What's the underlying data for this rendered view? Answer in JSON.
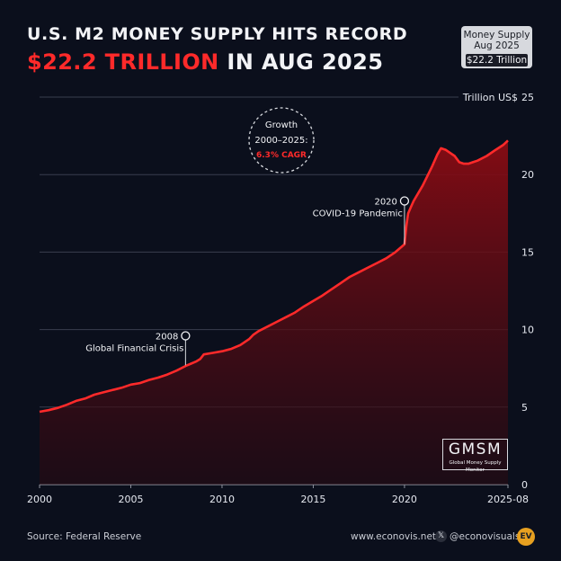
{
  "header": {
    "title_line1": "U.S. M2 MONEY SUPPLY HITS RECORD",
    "title_highlight": "$22.2 TRILLION",
    "title_rest": " IN AUG 2025"
  },
  "badge": {
    "line1": "Money Supply",
    "line2": "Aug 2025",
    "value": "$22.2 Trillion"
  },
  "growth": {
    "line1": "Growth",
    "line2": "2000–2025:",
    "line3": "6.3% CAGR"
  },
  "annotations": [
    {
      "year_label": "2008",
      "text": "Global Financial Crisis",
      "x": 2008.0,
      "y": 9.6,
      "line_to": 7.7
    },
    {
      "year_label": "2020",
      "text": "COVID-19 Pandemic",
      "x": 2020.0,
      "y": 18.3,
      "line_to": 15.5
    }
  ],
  "gmsm": {
    "title": "GMSM",
    "subtitle": "Global Money Supply Monitor"
  },
  "footer": {
    "source": "Source: Federal Reserve",
    "website": "www.econovis.net",
    "handle": "@econovisuals",
    "x_icon": "x-logo-icon",
    "logo": "EV"
  },
  "colors": {
    "background": "#0b0f1c",
    "line": "#ff2a2a",
    "area_top": "#8a0c14",
    "accent": "#ff2a2a",
    "text": "#f2f3f6"
  },
  "chart_data": {
    "type": "area",
    "title": "U.S. M2 MONEY SUPPLY HITS RECORD",
    "subtitle": "$22.2 TRILLION IN AUG 2025",
    "ylabel": "Trillion US$",
    "xlim": [
      2000,
      2025.67
    ],
    "ylim": [
      0,
      25
    ],
    "x_ticks": [
      "2000",
      "2005",
      "2010",
      "2015",
      "2020",
      "2025-08"
    ],
    "x_tick_values": [
      2000,
      2005,
      2010,
      2015,
      2020,
      2025.67
    ],
    "y_ticks": [
      0,
      5,
      10,
      15,
      20,
      25
    ],
    "grid": "horizontal",
    "y_axis_side": "right",
    "series": [
      {
        "x": [
          2000,
          2000.5,
          2001,
          2001.5,
          2002,
          2002.5,
          2003,
          2003.5,
          2004,
          2004.5,
          2005,
          2005.5,
          2006,
          2006.5,
          2007,
          2007.5,
          2008,
          2008.3,
          2008.6,
          2008.8,
          2009,
          2009.5,
          2010,
          2010.5,
          2011,
          2011.5,
          2011.7,
          2012,
          2012.5,
          2013,
          2013.5,
          2014,
          2014.5,
          2015,
          2015.5,
          2016,
          2016.5,
          2017,
          2017.5,
          2018,
          2018.5,
          2019,
          2019.5,
          2020.0,
          2020.1,
          2020.2,
          2020.35,
          2020.5,
          2021.0,
          2021.5,
          2021.8,
          2022.0,
          2022.25,
          2022.5,
          2022.75,
          2023.0,
          2023.25,
          2023.5,
          2023.75,
          2024.0,
          2024.5,
          2025.0,
          2025.4,
          2025.67
        ],
        "values": [
          4.7,
          4.8,
          4.95,
          5.15,
          5.4,
          5.55,
          5.8,
          5.95,
          6.1,
          6.25,
          6.45,
          6.55,
          6.75,
          6.9,
          7.1,
          7.35,
          7.65,
          7.8,
          7.95,
          8.1,
          8.4,
          8.5,
          8.6,
          8.75,
          9.0,
          9.4,
          9.65,
          9.9,
          10.2,
          10.5,
          10.8,
          11.1,
          11.5,
          11.85,
          12.2,
          12.6,
          13.0,
          13.4,
          13.7,
          14.0,
          14.3,
          14.6,
          15.0,
          15.5,
          16.7,
          17.5,
          17.9,
          18.3,
          19.3,
          20.5,
          21.3,
          21.7,
          21.6,
          21.4,
          21.2,
          20.8,
          20.7,
          20.7,
          20.8,
          20.9,
          21.2,
          21.6,
          21.9,
          22.2
        ]
      }
    ]
  }
}
